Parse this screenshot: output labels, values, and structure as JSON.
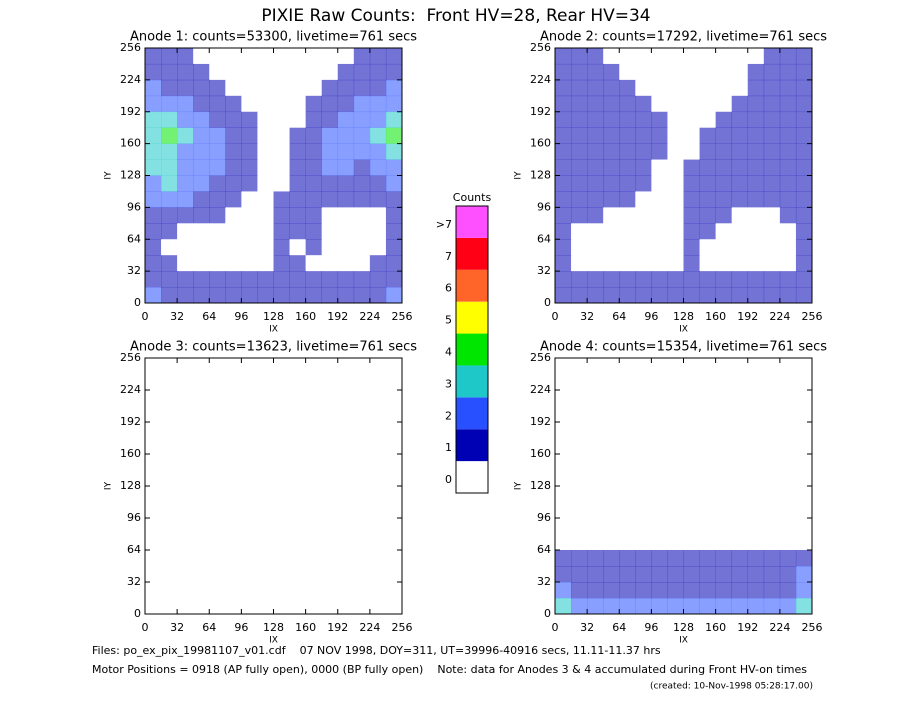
{
  "title": "PIXIE Raw Counts:  Front HV=28, Rear HV=34",
  "colorbar": {
    "title": "Counts",
    "ticks": [
      0,
      1,
      2,
      3,
      4,
      5,
      6,
      7,
      {
        "value": 8,
        "label": ">7"
      }
    ],
    "colors": [
      "#ffffff",
      "#0000b4",
      "#2850ff",
      "#1ec8c8",
      "#00e600",
      "#ffff00",
      "#ff6428",
      "#ff0014",
      "#ff50ff"
    ]
  },
  "chart_data": [
    {
      "type": "heatmap",
      "title": "Anode 1: counts=53300, livetime=761 secs",
      "xlabel": "IX",
      "ylabel": "IY",
      "xlim": [
        0,
        256
      ],
      "ylim": [
        0,
        256
      ],
      "xticks": [
        0,
        32,
        64,
        96,
        128,
        160,
        192,
        224,
        256
      ],
      "yticks": [
        0,
        32,
        64,
        96,
        128,
        160,
        192,
        224,
        256
      ],
      "values": [
        [
          1,
          1,
          1,
          0,
          0,
          0,
          0,
          0,
          0,
          0,
          0,
          0,
          0,
          1,
          1,
          1
        ],
        [
          1,
          1,
          1,
          1,
          0,
          0,
          0,
          0,
          0,
          0,
          0,
          0,
          1,
          1,
          1,
          1
        ],
        [
          2,
          1,
          1,
          1,
          1,
          0,
          0,
          0,
          0,
          0,
          0,
          1,
          1,
          1,
          1,
          2
        ],
        [
          2,
          2,
          2,
          1,
          1,
          1,
          0,
          0,
          0,
          0,
          1,
          1,
          1,
          2,
          2,
          2
        ],
        [
          3,
          3,
          2,
          2,
          1,
          1,
          1,
          0,
          0,
          0,
          1,
          1,
          2,
          2,
          2,
          3
        ],
        [
          3,
          4,
          3,
          2,
          2,
          1,
          1,
          0,
          0,
          1,
          1,
          2,
          2,
          2,
          3,
          4
        ],
        [
          3,
          3,
          2,
          2,
          2,
          1,
          1,
          0,
          0,
          1,
          1,
          2,
          2,
          2,
          2,
          3
        ],
        [
          3,
          3,
          2,
          2,
          2,
          1,
          1,
          0,
          0,
          1,
          1,
          2,
          2,
          1,
          2,
          2
        ],
        [
          2,
          3,
          2,
          2,
          1,
          1,
          1,
          0,
          0,
          1,
          1,
          1,
          1,
          1,
          1,
          2
        ],
        [
          2,
          2,
          2,
          1,
          1,
          1,
          0,
          0,
          1,
          1,
          1,
          1,
          1,
          1,
          1,
          1
        ],
        [
          1,
          1,
          1,
          1,
          1,
          0,
          0,
          0,
          1,
          1,
          1,
          0,
          0,
          0,
          0,
          1
        ],
        [
          1,
          1,
          0,
          0,
          0,
          0,
          0,
          0,
          1,
          1,
          1,
          0,
          0,
          0,
          0,
          1
        ],
        [
          1,
          0,
          0,
          0,
          0,
          0,
          0,
          0,
          1,
          0,
          1,
          0,
          0,
          0,
          0,
          1
        ],
        [
          1,
          1,
          0,
          0,
          0,
          0,
          0,
          0,
          1,
          1,
          0,
          0,
          0,
          0,
          1,
          1
        ],
        [
          1,
          1,
          1,
          1,
          1,
          1,
          1,
          1,
          1,
          1,
          1,
          1,
          1,
          1,
          1,
          1
        ],
        [
          2,
          1,
          1,
          1,
          1,
          1,
          1,
          1,
          1,
          1,
          1,
          1,
          1,
          1,
          1,
          2
        ]
      ]
    },
    {
      "type": "heatmap",
      "title": "Anode 2: counts=17292, livetime=761 secs",
      "xlabel": "IX",
      "ylabel": "IY",
      "xlim": [
        0,
        256
      ],
      "ylim": [
        0,
        256
      ],
      "xticks": [
        0,
        32,
        64,
        96,
        128,
        160,
        192,
        224,
        256
      ],
      "yticks": [
        0,
        32,
        64,
        96,
        128,
        160,
        192,
        224,
        256
      ],
      "values": [
        [
          1,
          1,
          1,
          0,
          0,
          0,
          0,
          0,
          0,
          0,
          0,
          0,
          0,
          1,
          1,
          1
        ],
        [
          1,
          1,
          1,
          1,
          0,
          0,
          0,
          0,
          0,
          0,
          0,
          0,
          1,
          1,
          1,
          1
        ],
        [
          1,
          1,
          1,
          1,
          1,
          0,
          0,
          0,
          0,
          0,
          0,
          0,
          1,
          1,
          1,
          1
        ],
        [
          1,
          1,
          1,
          1,
          1,
          1,
          0,
          0,
          0,
          0,
          0,
          1,
          1,
          1,
          1,
          1
        ],
        [
          1,
          1,
          1,
          1,
          1,
          1,
          1,
          0,
          0,
          0,
          1,
          1,
          1,
          1,
          1,
          1
        ],
        [
          1,
          1,
          1,
          1,
          1,
          1,
          1,
          0,
          0,
          1,
          1,
          1,
          1,
          1,
          1,
          1
        ],
        [
          1,
          1,
          1,
          1,
          1,
          1,
          1,
          0,
          0,
          1,
          1,
          1,
          1,
          1,
          1,
          1
        ],
        [
          1,
          1,
          1,
          1,
          1,
          1,
          0,
          0,
          1,
          1,
          1,
          1,
          1,
          1,
          1,
          1
        ],
        [
          1,
          1,
          1,
          1,
          1,
          1,
          0,
          0,
          1,
          1,
          1,
          1,
          1,
          1,
          1,
          1
        ],
        [
          1,
          1,
          1,
          1,
          1,
          0,
          0,
          0,
          1,
          1,
          1,
          1,
          1,
          1,
          1,
          1
        ],
        [
          1,
          1,
          1,
          0,
          0,
          0,
          0,
          0,
          1,
          1,
          1,
          0,
          0,
          0,
          1,
          1
        ],
        [
          1,
          0,
          0,
          0,
          0,
          0,
          0,
          0,
          1,
          1,
          0,
          0,
          0,
          0,
          0,
          1
        ],
        [
          1,
          0,
          0,
          0,
          0,
          0,
          0,
          0,
          1,
          0,
          0,
          0,
          0,
          0,
          0,
          1
        ],
        [
          1,
          0,
          0,
          0,
          0,
          0,
          0,
          0,
          1,
          0,
          0,
          0,
          0,
          0,
          0,
          1
        ],
        [
          1,
          1,
          1,
          1,
          1,
          1,
          1,
          1,
          1,
          1,
          1,
          1,
          1,
          1,
          1,
          1
        ],
        [
          1,
          1,
          1,
          1,
          1,
          1,
          1,
          1,
          1,
          1,
          1,
          1,
          1,
          1,
          1,
          1
        ]
      ]
    },
    {
      "type": "heatmap",
      "title": "Anode 3: counts=13623, livetime=761 secs",
      "xlabel": "IX",
      "ylabel": "IY",
      "xlim": [
        0,
        256
      ],
      "ylim": [
        0,
        256
      ],
      "xticks": [
        0,
        32,
        64,
        96,
        128,
        160,
        192,
        224,
        256
      ],
      "yticks": [
        0,
        32,
        64,
        96,
        128,
        160,
        192,
        224,
        256
      ],
      "values": [
        [
          0,
          0,
          0,
          0,
          0,
          0,
          0,
          0,
          0,
          0,
          0,
          0,
          0,
          0,
          0,
          0
        ],
        [
          0,
          0,
          0,
          0,
          0,
          0,
          0,
          0,
          0,
          0,
          0,
          0,
          0,
          0,
          0,
          0
        ],
        [
          0,
          0,
          0,
          0,
          0,
          0,
          0,
          0,
          0,
          0,
          0,
          0,
          0,
          0,
          0,
          0
        ],
        [
          0,
          0,
          0,
          0,
          0,
          0,
          0,
          0,
          0,
          0,
          0,
          0,
          0,
          0,
          0,
          0
        ],
        [
          0,
          0,
          0,
          0,
          0,
          0,
          0,
          0,
          0,
          0,
          0,
          0,
          0,
          0,
          0,
          0
        ],
        [
          0,
          0,
          0,
          0,
          0,
          0,
          0,
          0,
          0,
          0,
          0,
          0,
          0,
          0,
          0,
          0
        ],
        [
          0,
          0,
          0,
          0,
          0,
          0,
          0,
          0,
          0,
          0,
          0,
          0,
          0,
          0,
          0,
          0
        ],
        [
          0,
          0,
          0,
          0,
          0,
          0,
          0,
          0,
          0,
          0,
          0,
          0,
          0,
          0,
          0,
          0
        ],
        [
          0,
          0,
          0,
          0,
          0,
          0,
          0,
          0,
          0,
          0,
          0,
          0,
          0,
          0,
          0,
          0
        ],
        [
          0,
          0,
          0,
          0,
          0,
          0,
          0,
          0,
          0,
          0,
          0,
          0,
          0,
          0,
          0,
          0
        ],
        [
          0,
          0,
          0,
          0,
          0,
          0,
          0,
          0,
          0,
          0,
          0,
          0,
          0,
          0,
          0,
          0
        ],
        [
          0,
          0,
          0,
          0,
          0,
          0,
          0,
          0,
          0,
          0,
          0,
          0,
          0,
          0,
          0,
          0
        ],
        [
          0,
          0,
          0,
          0,
          0,
          0,
          0,
          0,
          0,
          0,
          0,
          0,
          0,
          0,
          0,
          0
        ],
        [
          0,
          0,
          0,
          0,
          0,
          0,
          0,
          0,
          0,
          0,
          0,
          0,
          0,
          0,
          0,
          0
        ],
        [
          0,
          0,
          0,
          0,
          0,
          0,
          0,
          0,
          0,
          0,
          0,
          0,
          0,
          0,
          0,
          0
        ],
        [
          0,
          0,
          0,
          0,
          0,
          0,
          0,
          0,
          0,
          0,
          0,
          0,
          0,
          0,
          0,
          0
        ]
      ]
    },
    {
      "type": "heatmap",
      "title": "Anode 4: counts=15354, livetime=761 secs",
      "xlabel": "IX",
      "ylabel": "IY",
      "xlim": [
        0,
        256
      ],
      "ylim": [
        0,
        256
      ],
      "xticks": [
        0,
        32,
        64,
        96,
        128,
        160,
        192,
        224,
        256
      ],
      "yticks": [
        0,
        32,
        64,
        96,
        128,
        160,
        192,
        224,
        256
      ],
      "values": [
        [
          0,
          0,
          0,
          0,
          0,
          0,
          0,
          0,
          0,
          0,
          0,
          0,
          0,
          0,
          0,
          0
        ],
        [
          0,
          0,
          0,
          0,
          0,
          0,
          0,
          0,
          0,
          0,
          0,
          0,
          0,
          0,
          0,
          0
        ],
        [
          0,
          0,
          0,
          0,
          0,
          0,
          0,
          0,
          0,
          0,
          0,
          0,
          0,
          0,
          0,
          0
        ],
        [
          0,
          0,
          0,
          0,
          0,
          0,
          0,
          0,
          0,
          0,
          0,
          0,
          0,
          0,
          0,
          0
        ],
        [
          0,
          0,
          0,
          0,
          0,
          0,
          0,
          0,
          0,
          0,
          0,
          0,
          0,
          0,
          0,
          0
        ],
        [
          0,
          0,
          0,
          0,
          0,
          0,
          0,
          0,
          0,
          0,
          0,
          0,
          0,
          0,
          0,
          0
        ],
        [
          0,
          0,
          0,
          0,
          0,
          0,
          0,
          0,
          0,
          0,
          0,
          0,
          0,
          0,
          0,
          0
        ],
        [
          0,
          0,
          0,
          0,
          0,
          0,
          0,
          0,
          0,
          0,
          0,
          0,
          0,
          0,
          0,
          0
        ],
        [
          0,
          0,
          0,
          0,
          0,
          0,
          0,
          0,
          0,
          0,
          0,
          0,
          0,
          0,
          0,
          0
        ],
        [
          0,
          0,
          0,
          0,
          0,
          0,
          0,
          0,
          0,
          0,
          0,
          0,
          0,
          0,
          0,
          0
        ],
        [
          0,
          0,
          0,
          0,
          0,
          0,
          0,
          0,
          0,
          0,
          0,
          0,
          0,
          0,
          0,
          0
        ],
        [
          0,
          0,
          0,
          0,
          0,
          0,
          0,
          0,
          0,
          0,
          0,
          0,
          0,
          0,
          0,
          0
        ],
        [
          1,
          1,
          1,
          1,
          1,
          1,
          1,
          1,
          1,
          1,
          1,
          1,
          1,
          1,
          1,
          1
        ],
        [
          1,
          1,
          1,
          1,
          1,
          1,
          1,
          1,
          1,
          1,
          1,
          1,
          1,
          1,
          1,
          2
        ],
        [
          2,
          1,
          1,
          1,
          1,
          1,
          1,
          1,
          1,
          1,
          1,
          1,
          1,
          1,
          1,
          2
        ],
        [
          3,
          2,
          2,
          2,
          2,
          2,
          2,
          2,
          2,
          2,
          2,
          2,
          2,
          2,
          2,
          3
        ]
      ]
    }
  ],
  "footer": {
    "files": "Files: po_ex_pix_19981107_v01.cdf    07 NOV 1998, DOY=311, UT=39996-40916 secs, 11.11-11.37 hrs",
    "motor": "Motor Positions = 0918 (AP fully open), 0000 (BP fully open)    Note: data for Anodes 3 & 4 accumulated during Front HV-on times",
    "created": "(created: 10-Nov-1998 05:28:17.00)"
  }
}
